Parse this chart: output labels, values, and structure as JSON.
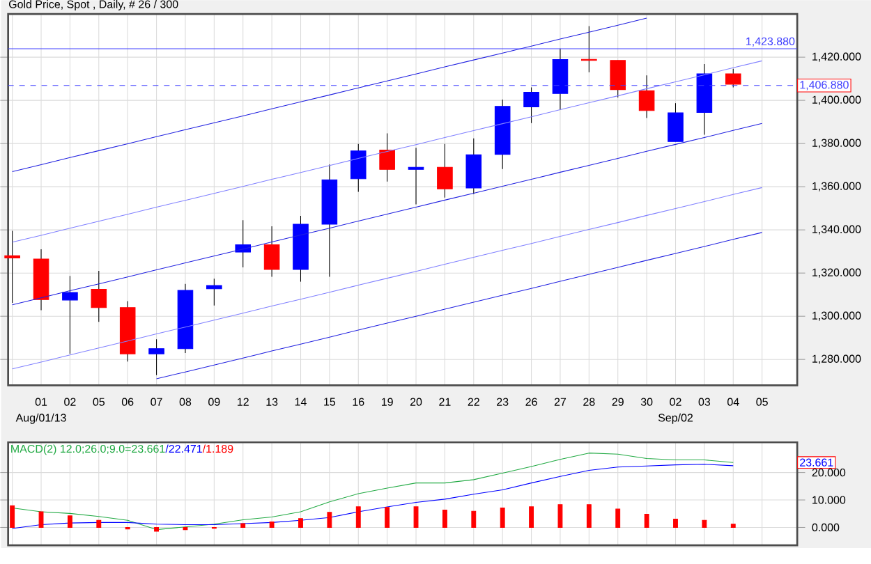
{
  "chart_data": [
    {
      "type": "candlestick",
      "title": "Gold Price, Spot , Daily, # 26 / 300",
      "categories": [
        null,
        "01",
        "02",
        "05",
        "06",
        "07",
        "08",
        "09",
        "12",
        "13",
        "14",
        "15",
        "16",
        "19",
        "20",
        "21",
        "22",
        "23",
        "26",
        "27",
        "28",
        "29",
        "30",
        "02",
        "03",
        "04",
        "05"
      ],
      "ohlc": [
        [
          1328,
          1339.6,
          1306.2,
          1327
        ],
        [
          1326.5,
          1331,
          1302.8,
          1307.7
        ],
        [
          1307.5,
          1318.7,
          1282.6,
          1311
        ],
        [
          1312.5,
          1321,
          1297.4,
          1304
        ],
        [
          1304,
          1307,
          1279,
          1282.6
        ],
        [
          1282.6,
          1289.3,
          1272.7,
          1285
        ],
        [
          1285,
          1315,
          1283,
          1312
        ],
        [
          1312.7,
          1317.4,
          1305,
          1314.2
        ],
        [
          1329.7,
          1344.5,
          1322.6,
          1333.1
        ],
        [
          1333.1,
          1341.7,
          1318.3,
          1321.7
        ],
        [
          1321.7,
          1346.5,
          1316,
          1342.6
        ],
        [
          1342.6,
          1370.3,
          1318.3,
          1363.2
        ],
        [
          1363.7,
          1379.8,
          1357.6,
          1376.6
        ],
        [
          1377,
          1384.7,
          1362.4,
          1368
        ],
        [
          1368,
          1378,
          1351.8,
          1369
        ],
        [
          1369,
          1379.8,
          1355,
          1359
        ],
        [
          1359.4,
          1382.4,
          1356.6,
          1374.8
        ],
        [
          1375,
          1400.4,
          1368.2,
          1397.2
        ],
        [
          1397,
          1406,
          1389.5,
          1403.7
        ],
        [
          1403.2,
          1424,
          1395.7,
          1418.9
        ],
        [
          1419,
          1434.4,
          1413,
          1418.5
        ],
        [
          1418.5,
          1418.5,
          1401.3,
          1405
        ],
        [
          1404.5,
          1411.6,
          1391.8,
          1395.3
        ],
        [
          1380.9,
          1398.7,
          1380.9,
          1394.2
        ],
        [
          1394.4,
          1416.8,
          1384.1,
          1412.3
        ],
        [
          1412.3,
          1414.6,
          1406,
          1407.5
        ],
        null
      ],
      "colors": [
        "#ff0000",
        "#ff0000",
        "#0000ff",
        "#ff0000",
        "#ff0000",
        "#0000ff",
        "#0000ff",
        "#0000ff",
        "#0000ff",
        "#ff0000",
        "#0000ff",
        "#0000ff",
        "#0000ff",
        "#ff0000",
        "#0000ff",
        "#ff0000",
        "#0000ff",
        "#0000ff",
        "#0000ff",
        "#0000ff",
        "#ff0000",
        "#ff0000",
        "#ff0000",
        "#0000ff",
        "#0000ff",
        "#ff0000",
        null
      ],
      "series": [
        {
          "type": "line",
          "color": "#2020e0",
          "values": [
            1367.0,
            1370.2,
            1373.5,
            1376.7,
            1379.9,
            1383.2,
            1386.4,
            1389.6,
            1392.8,
            1396.1,
            1399.3,
            1402.5,
            1405.8,
            1409.0,
            1412.2,
            1415.5,
            1418.7,
            1421.9,
            1425.1,
            1428.4,
            1431.6,
            1434.8,
            1438.1,
            null,
            null,
            null,
            null
          ]
        },
        {
          "type": "line",
          "color": "#8080ff",
          "values": [
            1334.3,
            1337.5,
            1340.8,
            1344.0,
            1347.2,
            1350.5,
            1353.7,
            1356.9,
            1360.1,
            1363.4,
            1366.6,
            1369.8,
            1373.1,
            1376.3,
            1379.5,
            1382.8,
            1386.0,
            1389.2,
            1392.4,
            1395.7,
            1398.9,
            1402.1,
            1405.4,
            1408.6,
            1411.8,
            1415.1,
            1418.3
          ]
        },
        {
          "type": "line",
          "color": "#2020e0",
          "values": [
            1305.3,
            1308.5,
            1311.8,
            1315.0,
            1318.2,
            1321.5,
            1324.7,
            1327.9,
            1331.1,
            1334.4,
            1337.6,
            1340.8,
            1344.1,
            1347.3,
            1350.5,
            1353.8,
            1357.0,
            1360.2,
            1363.4,
            1366.7,
            1369.9,
            1373.1,
            1376.4,
            1379.6,
            1382.8,
            1386.1,
            1389.3
          ]
        },
        {
          "type": "line",
          "color": "#8080ff",
          "values": [
            1275.6,
            1278.8,
            1282.1,
            1285.3,
            1288.5,
            1291.8,
            1295.0,
            1298.2,
            1301.4,
            1304.7,
            1307.9,
            1311.1,
            1314.4,
            1317.6,
            1320.8,
            1324.1,
            1327.3,
            1330.5,
            1333.7,
            1337.0,
            1340.2,
            1343.4,
            1346.7,
            1349.9,
            1353.1,
            1356.4,
            1359.6
          ]
        },
        {
          "type": "line",
          "color": "#2020e0",
          "values": [
            null,
            null,
            null,
            null,
            null,
            1271.0,
            1274.2,
            1277.4,
            1280.6,
            1283.9,
            1287.1,
            1290.3,
            1293.6,
            1296.8,
            1300.0,
            1303.3,
            1306.5,
            1309.7,
            1312.9,
            1316.2,
            1319.4,
            1322.6,
            1325.9,
            1329.1,
            1332.3,
            1335.6,
            1338.8
          ]
        }
      ],
      "ylim": [
        1268,
        1440
      ],
      "yticks": [
        {
          "value": 1280,
          "label": "1,280.000"
        },
        {
          "value": 1300,
          "label": "1,300.000"
        },
        {
          "value": 1320,
          "label": "1,320.000"
        },
        {
          "value": 1340,
          "label": "1,340.000"
        },
        {
          "value": 1360,
          "label": "1,360.000"
        },
        {
          "value": 1380,
          "label": "1,380.000"
        },
        {
          "value": 1400,
          "label": "1,400.000"
        },
        {
          "value": 1420,
          "label": "1,420.000"
        }
      ],
      "ref_lines": [
        {
          "axis": "y",
          "value": 1423.88,
          "label": "1,423.880",
          "color": "#4040ff",
          "line_style": "solid"
        },
        {
          "axis": "y",
          "value": 1406.88,
          "label": "1,406.880",
          "color": "#4040ff",
          "line_style": "dashed"
        }
      ],
      "grid": true,
      "annotations": [
        "Aug/01/13",
        "Sep/02"
      ]
    },
    {
      "type": "line",
      "title": "MACD(2) 12.0;26.0;9.0=23.661",
      "categories": [
        null,
        "01",
        "02",
        "05",
        "06",
        "07",
        "08",
        "09",
        "12",
        "13",
        "14",
        "15",
        "16",
        "19",
        "20",
        "21",
        "22",
        "23",
        "26",
        "27",
        "28",
        "29",
        "30",
        "02",
        "03",
        "04",
        "05"
      ],
      "series": [
        {
          "color": "#22aa44",
          "values": [
            7.1,
            5.7,
            5.1,
            4.0,
            2.6,
            -0.8,
            0.2,
            1.2,
            2.8,
            3.8,
            5.7,
            9.3,
            12.3,
            14.3,
            16.2,
            16.2,
            17.4,
            19.8,
            22.2,
            24.8,
            27.1,
            26.7,
            25.1,
            24.6,
            24.6,
            23.661,
            null
          ]
        },
        {
          "name": "/22.471",
          "color": "#0000ff",
          "values": [
            -0.4,
            1.0,
            1.6,
            1.8,
            1.8,
            1.2,
            1.0,
            1.0,
            1.4,
            1.8,
            2.6,
            3.6,
            5.7,
            7.5,
            9.1,
            10.3,
            12.1,
            13.7,
            16.2,
            18.6,
            20.8,
            22.0,
            22.4,
            22.8,
            23.0,
            22.471,
            null
          ]
        },
        {
          "name": "/1.189",
          "type": "bar",
          "color": "#ff0000",
          "values": [
            7.9,
            5.7,
            4.2,
            2.6,
            -0.6,
            -1.4,
            -0.8,
            -0.3,
            1.4,
            2.0,
            3.2,
            5.5,
            7.5,
            7.3,
            7.5,
            6.3,
            5.9,
            7.1,
            7.5,
            8.3,
            8.3,
            6.7,
            4.8,
            3.0,
            2.6,
            1.189,
            null
          ]
        }
      ],
      "ylim": [
        -6.5,
        31
      ],
      "yticks": [
        {
          "value": 0,
          "label": "0.000"
        },
        {
          "value": 10,
          "label": "10.000"
        },
        {
          "value": 20,
          "label": "20.000"
        }
      ],
      "grid": true,
      "tick_labels": "y",
      "annotations": [
        {
          "text": "23.661",
          "y": 23.661
        }
      ]
    }
  ]
}
